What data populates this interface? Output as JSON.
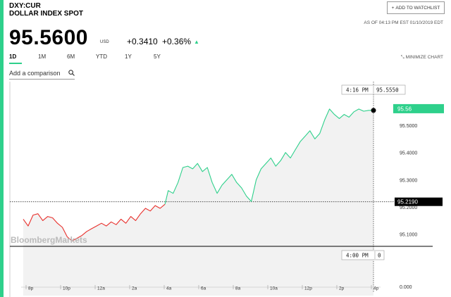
{
  "header": {
    "ticker": "DXY:CUR",
    "name": "DOLLAR INDEX SPOT",
    "watchlist_label": "ADD TO WATCHLIST",
    "as_of": "AS OF 04:13 PM EST 01/10/2019 EDT"
  },
  "quote": {
    "price": "95.5600",
    "currency": "USD",
    "change": "+0.3410",
    "change_pct": "+0.36%"
  },
  "tabs": [
    "1D",
    "1M",
    "6M",
    "YTD",
    "1Y",
    "5Y"
  ],
  "active_tab": "1D",
  "minimize_label": "MINIMIZE CHART",
  "compare": {
    "placeholder": "Add a comparison"
  },
  "watermark": "BloombergMarkets",
  "colors": {
    "accent": "#2ed08b",
    "down": "#e8302c",
    "up": "#2ed08b"
  },
  "icons": [
    "plus-icon",
    "up-arrow-icon",
    "shrink-icon",
    "search-icon"
  ],
  "chart_data": {
    "type": "line",
    "x_tick_labels": [
      "8p",
      "10p",
      "12a",
      "2a",
      "4a",
      "6a",
      "8a",
      "10a",
      "12p",
      "2p",
      "4p"
    ],
    "y_tick_labels": [
      "95.5000",
      "95.4000",
      "95.3000",
      "95.2000",
      "95.1000"
    ],
    "volume_tick_label": "0.000",
    "ylim": [
      95.05,
      95.64
    ],
    "previous_close": 95.219,
    "previous_close_label": "95.2190",
    "last_label": "95.56",
    "crosshair": {
      "time": "4:16 PM",
      "value": "95.5550"
    },
    "volume_crosshair": {
      "time": "4:00 PM",
      "value": "0"
    },
    "series": [
      {
        "color": "#e8302c",
        "points": [
          [
            0,
            95.155
          ],
          [
            0.3,
            95.13
          ],
          [
            0.6,
            95.17
          ],
          [
            0.9,
            95.175
          ],
          [
            1.2,
            95.15
          ],
          [
            1.5,
            95.165
          ],
          [
            1.8,
            95.16
          ],
          [
            2.1,
            95.14
          ],
          [
            2.4,
            95.125
          ],
          [
            2.7,
            95.09
          ],
          [
            3.0,
            95.075
          ],
          [
            3.3,
            95.085
          ],
          [
            3.6,
            95.095
          ],
          [
            3.9,
            95.11
          ],
          [
            4.2,
            95.12
          ],
          [
            4.5,
            95.13
          ],
          [
            4.8,
            95.14
          ],
          [
            5.1,
            95.13
          ],
          [
            5.4,
            95.145
          ],
          [
            5.7,
            95.135
          ],
          [
            6.0,
            95.155
          ],
          [
            6.3,
            95.14
          ],
          [
            6.6,
            95.165
          ],
          [
            6.9,
            95.15
          ],
          [
            7.2,
            95.175
          ],
          [
            7.5,
            95.195
          ],
          [
            7.8,
            95.185
          ],
          [
            8.1,
            95.205
          ],
          [
            8.4,
            95.195
          ],
          [
            8.7,
            95.21
          ]
        ]
      },
      {
        "color": "#2ed08b",
        "points": [
          [
            8.7,
            95.21
          ],
          [
            8.9,
            95.26
          ],
          [
            9.2,
            95.25
          ],
          [
            9.5,
            95.29
          ],
          [
            9.8,
            95.345
          ],
          [
            10.1,
            95.35
          ],
          [
            10.4,
            95.34
          ],
          [
            10.7,
            95.36
          ],
          [
            11.0,
            95.33
          ],
          [
            11.3,
            95.345
          ],
          [
            11.6,
            95.29
          ],
          [
            11.9,
            95.25
          ],
          [
            12.2,
            95.28
          ],
          [
            12.5,
            95.3
          ],
          [
            12.8,
            95.32
          ],
          [
            13.1,
            95.29
          ],
          [
            13.4,
            95.27
          ],
          [
            13.7,
            95.24
          ],
          [
            14.0,
            95.22
          ],
          [
            14.3,
            95.3
          ],
          [
            14.6,
            95.34
          ],
          [
            14.9,
            95.36
          ],
          [
            15.2,
            95.38
          ],
          [
            15.5,
            95.35
          ],
          [
            15.8,
            95.37
          ],
          [
            16.1,
            95.4
          ],
          [
            16.4,
            95.38
          ],
          [
            16.7,
            95.41
          ],
          [
            17.0,
            95.44
          ],
          [
            17.3,
            95.46
          ],
          [
            17.6,
            95.48
          ],
          [
            17.9,
            95.45
          ],
          [
            18.2,
            95.47
          ],
          [
            18.5,
            95.52
          ],
          [
            18.8,
            95.56
          ],
          [
            19.1,
            95.54
          ],
          [
            19.4,
            95.525
          ],
          [
            19.7,
            95.54
          ],
          [
            20.0,
            95.53
          ],
          [
            20.3,
            95.55
          ],
          [
            20.6,
            95.56
          ],
          [
            20.9,
            95.552
          ],
          [
            21.2,
            95.555
          ],
          [
            21.5,
            95.555
          ]
        ]
      }
    ]
  }
}
